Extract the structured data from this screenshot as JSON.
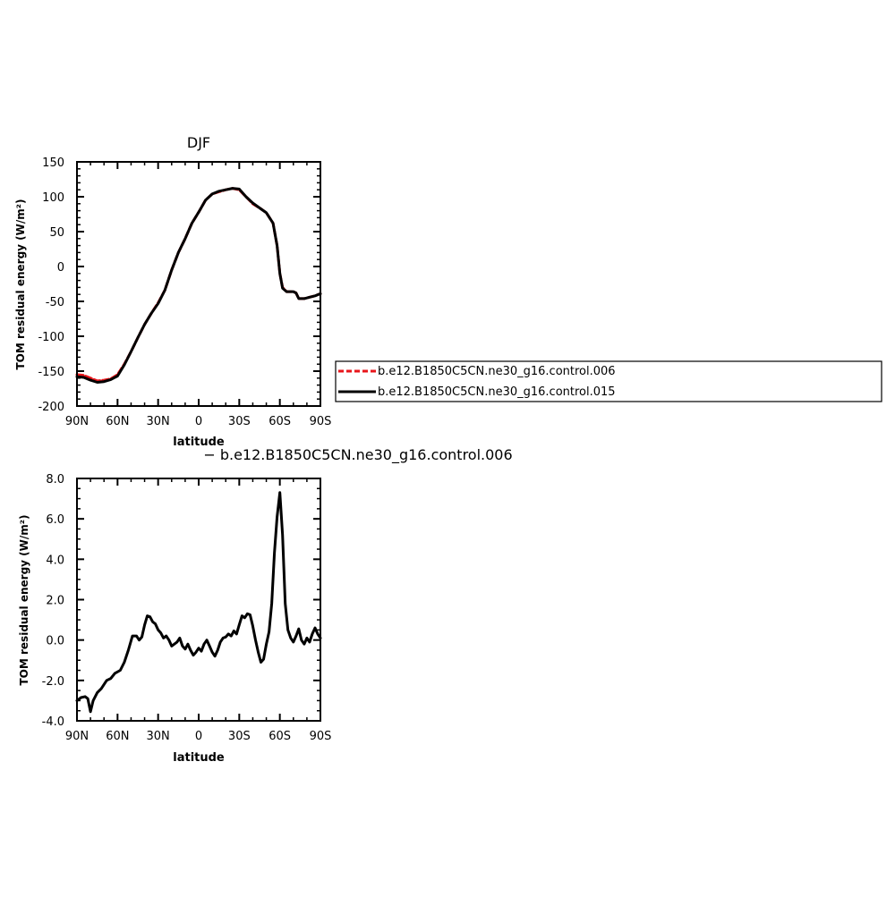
{
  "chart_data": [
    {
      "type": "line",
      "title": "DJF",
      "xlabel": "latitude",
      "ylabel": "TOM residual energy (W/m²)",
      "xlim": [
        90,
        -90
      ],
      "ylim": [
        -200,
        150
      ],
      "x_tick_values": [
        90,
        60,
        30,
        0,
        -30,
        -60,
        -90
      ],
      "x_tick_labels": [
        "90N",
        "60N",
        "30N",
        "0",
        "30S",
        "60S",
        "90S"
      ],
      "y_tick_values": [
        -200,
        -150,
        -100,
        -50,
        0,
        50,
        100,
        150
      ],
      "y_tick_labels": [
        "-200",
        "-150",
        "-100",
        "-50",
        "0",
        "50",
        "100",
        "150"
      ],
      "legend_position": "right",
      "series": [
        {
          "name": "b.e12.B1850C5CN.ne30_g16.control.006",
          "color": "#e8161b",
          "dashed": true,
          "x": [
            90,
            85,
            80,
            75,
            70,
            65,
            60,
            55,
            50,
            45,
            40,
            35,
            30,
            25,
            20,
            15,
            10,
            5,
            0,
            -5,
            -10,
            -15,
            -20,
            -25,
            -30,
            -35,
            -40,
            -45,
            -50,
            -55,
            -58,
            -60,
            -62,
            -65,
            -70,
            -72,
            -74,
            -78,
            -82,
            -86,
            -90
          ],
          "values": [
            -155,
            -156,
            -160,
            -164,
            -163,
            -161,
            -155,
            -140,
            -122,
            -102,
            -83,
            -67,
            -52,
            -34,
            -5,
            20,
            40,
            62,
            78,
            95,
            104,
            107,
            110,
            112,
            110,
            100,
            90,
            84,
            77,
            62,
            30,
            -10,
            -30,
            -36,
            -36,
            -38,
            -46,
            -46,
            -44,
            -42,
            -39
          ]
        },
        {
          "name": "b.e12.B1850C5CN.ne30_g16.control.015",
          "color": "#000000",
          "dashed": false,
          "x": [
            90,
            85,
            80,
            75,
            70,
            65,
            60,
            55,
            50,
            45,
            40,
            35,
            30,
            25,
            20,
            15,
            10,
            5,
            0,
            -5,
            -10,
            -15,
            -20,
            -25,
            -30,
            -35,
            -40,
            -45,
            -50,
            -55,
            -58,
            -60,
            -62,
            -65,
            -70,
            -72,
            -74,
            -78,
            -82,
            -86,
            -90
          ],
          "values": [
            -158,
            -159,
            -163,
            -166,
            -165,
            -162,
            -157,
            -141,
            -122,
            -102,
            -83,
            -67,
            -53,
            -34,
            -5,
            20,
            40,
            62,
            78,
            95,
            104,
            108,
            110,
            112,
            111,
            100,
            91,
            84,
            77,
            62,
            30,
            -10,
            -31,
            -36,
            -36,
            -38,
            -46,
            -46,
            -44,
            -42,
            -39
          ]
        }
      ]
    },
    {
      "type": "line",
      "title": "− b.e12.B1850C5CN.ne30_g16.control.006",
      "xlabel": "latitude",
      "ylabel": "TOM residual energy (W/m²)",
      "xlim": [
        90,
        -90
      ],
      "ylim": [
        -4,
        8
      ],
      "x_tick_values": [
        90,
        60,
        30,
        0,
        -30,
        -60,
        -90
      ],
      "x_tick_labels": [
        "90N",
        "60N",
        "30N",
        "0",
        "30S",
        "60S",
        "90S"
      ],
      "y_tick_values": [
        -4,
        -2,
        0,
        2,
        4,
        6,
        8
      ],
      "y_tick_labels": [
        "-4.0",
        "-2.0",
        "0.0",
        "2.0",
        "4.0",
        "6.0",
        "8.0"
      ],
      "series": [
        {
          "color": "#000000",
          "x": [
            90,
            87,
            84,
            82,
            80,
            78,
            75,
            72,
            68,
            65,
            62,
            58,
            55,
            52,
            49,
            46,
            44,
            42,
            40,
            38,
            36,
            34,
            32,
            30,
            28,
            26,
            24,
            22,
            20,
            18,
            16,
            14,
            12,
            10,
            8,
            6,
            4,
            2,
            0,
            -2,
            -4,
            -6,
            -8,
            -10,
            -12,
            -14,
            -16,
            -18,
            -20,
            -22,
            -24,
            -26,
            -28,
            -30,
            -32,
            -34,
            -36,
            -38,
            -40,
            -42,
            -44,
            -46,
            -48,
            -50,
            -52,
            -54,
            -56,
            -58,
            -60,
            -62,
            -64,
            -66,
            -68,
            -70,
            -72,
            -74,
            -76,
            -78,
            -80,
            -82,
            -84,
            -86,
            -88,
            -90
          ],
          "values": [
            -3.0,
            -2.85,
            -2.8,
            -2.9,
            -3.55,
            -3.0,
            -2.6,
            -2.4,
            -2.0,
            -1.9,
            -1.65,
            -1.5,
            -1.1,
            -0.5,
            0.2,
            0.2,
            0.0,
            0.15,
            0.75,
            1.2,
            1.15,
            0.9,
            0.8,
            0.5,
            0.35,
            0.1,
            0.2,
            0.0,
            -0.3,
            -0.2,
            -0.1,
            0.1,
            -0.3,
            -0.45,
            -0.2,
            -0.5,
            -0.75,
            -0.6,
            -0.4,
            -0.55,
            -0.2,
            0.0,
            -0.3,
            -0.6,
            -0.8,
            -0.5,
            -0.1,
            0.1,
            0.15,
            0.3,
            0.2,
            0.45,
            0.3,
            0.75,
            1.2,
            1.1,
            1.3,
            1.25,
            0.7,
            0.0,
            -0.6,
            -1.1,
            -0.95,
            -0.2,
            0.4,
            1.8,
            4.3,
            6.1,
            7.3,
            5.2,
            1.8,
            0.5,
            0.1,
            -0.1,
            0.2,
            0.55,
            0.0,
            -0.2,
            0.1,
            -0.1,
            0.3,
            0.6,
            0.3,
            0.1
          ]
        }
      ]
    }
  ]
}
